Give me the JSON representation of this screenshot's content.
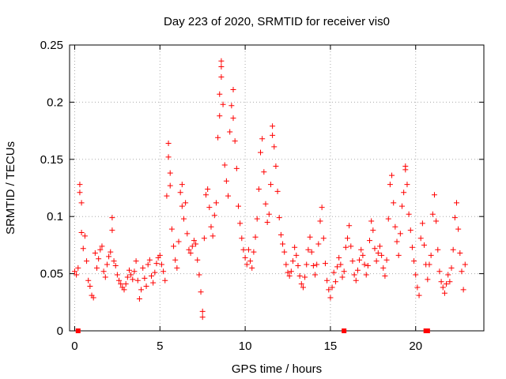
{
  "chart_data": {
    "type": "scatter",
    "title": "Day 223 of 2020, SRMTID for receiver vis0",
    "xlabel": "GPS time / hours",
    "ylabel": "SRMTID / TECUs",
    "xlim": [
      -0.3,
      24
    ],
    "ylim": [
      0,
      0.25
    ],
    "xticks": [
      0,
      5,
      10,
      15,
      20
    ],
    "xtick_labels": [
      "0",
      "5",
      "10",
      "15",
      "20"
    ],
    "yticks": [
      0,
      0.05,
      0.1,
      0.15,
      0.2,
      0.25
    ],
    "ytick_labels": [
      "0",
      "0.05",
      "0.1",
      "0.15",
      "0.2",
      "0.25"
    ],
    "grid": true,
    "marker": "+",
    "color": "#ff0000",
    "series": [
      {
        "name": "SRMTID",
        "points": [
          [
            0.0,
            0.052
          ],
          [
            0.1,
            0.049
          ],
          [
            0.2,
            0.055
          ],
          [
            0.3,
            0.128
          ],
          [
            0.3,
            0.121
          ],
          [
            0.4,
            0.112
          ],
          [
            0.4,
            0.086
          ],
          [
            0.5,
            0.072
          ],
          [
            0.6,
            0.083
          ],
          [
            0.7,
            0.061
          ],
          [
            0.8,
            0.044
          ],
          [
            0.9,
            0.039
          ],
          [
            1.0,
            0.031
          ],
          [
            1.1,
            0.029
          ],
          [
            1.2,
            0.068
          ],
          [
            1.3,
            0.055
          ],
          [
            1.4,
            0.063
          ],
          [
            1.5,
            0.071
          ],
          [
            1.6,
            0.074
          ],
          [
            1.7,
            0.052
          ],
          [
            1.8,
            0.047
          ],
          [
            1.9,
            0.058
          ],
          [
            2.0,
            0.065
          ],
          [
            2.1,
            0.069
          ],
          [
            2.2,
            0.088
          ],
          [
            2.2,
            0.099
          ],
          [
            2.3,
            0.061
          ],
          [
            2.4,
            0.057
          ],
          [
            2.5,
            0.049
          ],
          [
            2.6,
            0.044
          ],
          [
            2.7,
            0.041
          ],
          [
            2.8,
            0.038
          ],
          [
            2.9,
            0.036
          ],
          [
            3.0,
            0.041
          ],
          [
            3.1,
            0.047
          ],
          [
            3.2,
            0.053
          ],
          [
            3.3,
            0.049
          ],
          [
            3.4,
            0.045
          ],
          [
            3.5,
            0.052
          ],
          [
            3.6,
            0.061
          ],
          [
            3.7,
            0.044
          ],
          [
            3.8,
            0.028
          ],
          [
            3.9,
            0.036
          ],
          [
            4.0,
            0.055
          ],
          [
            4.1,
            0.046
          ],
          [
            4.2,
            0.039
          ],
          [
            4.3,
            0.058
          ],
          [
            4.4,
            0.062
          ],
          [
            4.5,
            0.048
          ],
          [
            4.6,
            0.042
          ],
          [
            4.7,
            0.051
          ],
          [
            4.8,
            0.059
          ],
          [
            4.9,
            0.064
          ],
          [
            5.0,
            0.066
          ],
          [
            5.1,
            0.058
          ],
          [
            5.2,
            0.052
          ],
          [
            5.3,
            0.044
          ],
          [
            5.4,
            0.118
          ],
          [
            5.5,
            0.164
          ],
          [
            5.5,
            0.152
          ],
          [
            5.6,
            0.138
          ],
          [
            5.6,
            0.127
          ],
          [
            5.7,
            0.089
          ],
          [
            5.8,
            0.074
          ],
          [
            5.9,
            0.062
          ],
          [
            6.0,
            0.055
          ],
          [
            6.1,
            0.078
          ],
          [
            6.2,
            0.121
          ],
          [
            6.3,
            0.128
          ],
          [
            6.3,
            0.109
          ],
          [
            6.4,
            0.098
          ],
          [
            6.5,
            0.112
          ],
          [
            6.6,
            0.085
          ],
          [
            6.7,
            0.071
          ],
          [
            6.8,
            0.068
          ],
          [
            6.9,
            0.074
          ],
          [
            7.0,
            0.079
          ],
          [
            7.1,
            0.076
          ],
          [
            7.2,
            0.062
          ],
          [
            7.3,
            0.049
          ],
          [
            7.4,
            0.034
          ],
          [
            7.5,
            0.012
          ],
          [
            7.5,
            0.017
          ],
          [
            7.6,
            0.081
          ],
          [
            7.7,
            0.119
          ],
          [
            7.8,
            0.124
          ],
          [
            7.9,
            0.108
          ],
          [
            8.0,
            0.091
          ],
          [
            8.1,
            0.083
          ],
          [
            8.2,
            0.101
          ],
          [
            8.3,
            0.112
          ],
          [
            8.4,
            0.169
          ],
          [
            8.5,
            0.188
          ],
          [
            8.5,
            0.207
          ],
          [
            8.6,
            0.236
          ],
          [
            8.6,
            0.231
          ],
          [
            8.6,
            0.222
          ],
          [
            8.7,
            0.198
          ],
          [
            8.8,
            0.145
          ],
          [
            8.9,
            0.131
          ],
          [
            9.0,
            0.118
          ],
          [
            9.1,
            0.174
          ],
          [
            9.2,
            0.197
          ],
          [
            9.3,
            0.211
          ],
          [
            9.3,
            0.186
          ],
          [
            9.4,
            0.166
          ],
          [
            9.5,
            0.142
          ],
          [
            9.6,
            0.109
          ],
          [
            9.7,
            0.094
          ],
          [
            9.8,
            0.081
          ],
          [
            9.9,
            0.071
          ],
          [
            10.0,
            0.064
          ],
          [
            10.1,
            0.058
          ],
          [
            10.2,
            0.071
          ],
          [
            10.3,
            0.061
          ],
          [
            10.4,
            0.055
          ],
          [
            10.5,
            0.069
          ],
          [
            10.6,
            0.082
          ],
          [
            10.7,
            0.098
          ],
          [
            10.8,
            0.124
          ],
          [
            10.9,
            0.156
          ],
          [
            11.0,
            0.168
          ],
          [
            11.1,
            0.139
          ],
          [
            11.2,
            0.111
          ],
          [
            11.3,
            0.095
          ],
          [
            11.4,
            0.102
          ],
          [
            11.5,
            0.128
          ],
          [
            11.6,
            0.171
          ],
          [
            11.6,
            0.179
          ],
          [
            11.7,
            0.161
          ],
          [
            11.8,
            0.144
          ],
          [
            11.9,
            0.122
          ],
          [
            12.0,
            0.099
          ],
          [
            12.1,
            0.084
          ],
          [
            12.2,
            0.076
          ],
          [
            12.3,
            0.069
          ],
          [
            12.4,
            0.058
          ],
          [
            12.5,
            0.051
          ],
          [
            12.6,
            0.048
          ],
          [
            12.7,
            0.052
          ],
          [
            12.8,
            0.061
          ],
          [
            12.9,
            0.073
          ],
          [
            13.0,
            0.066
          ],
          [
            13.1,
            0.057
          ],
          [
            13.2,
            0.048
          ],
          [
            13.3,
            0.041
          ],
          [
            13.4,
            0.038
          ],
          [
            13.5,
            0.047
          ],
          [
            13.6,
            0.058
          ],
          [
            13.7,
            0.071
          ],
          [
            13.8,
            0.082
          ],
          [
            13.9,
            0.069
          ],
          [
            14.0,
            0.057
          ],
          [
            14.1,
            0.049
          ],
          [
            14.2,
            0.058
          ],
          [
            14.3,
            0.076
          ],
          [
            14.4,
            0.096
          ],
          [
            14.5,
            0.108
          ],
          [
            14.6,
            0.081
          ],
          [
            14.7,
            0.059
          ],
          [
            14.8,
            0.044
          ],
          [
            14.9,
            0.036
          ],
          [
            15.0,
            0.029
          ],
          [
            15.1,
            0.038
          ],
          [
            15.2,
            0.051
          ],
          [
            15.3,
            0.043
          ],
          [
            15.4,
            0.056
          ],
          [
            15.5,
            0.064
          ],
          [
            15.6,
            0.058
          ],
          [
            15.7,
            0.047
          ],
          [
            15.8,
            0.052
          ],
          [
            15.9,
            0.073
          ],
          [
            16.0,
            0.081
          ],
          [
            16.1,
            0.092
          ],
          [
            16.2,
            0.074
          ],
          [
            16.3,
            0.061
          ],
          [
            16.4,
            0.049
          ],
          [
            16.5,
            0.044
          ],
          [
            16.6,
            0.053
          ],
          [
            16.7,
            0.062
          ],
          [
            16.8,
            0.071
          ],
          [
            16.9,
            0.066
          ],
          [
            17.0,
            0.058
          ],
          [
            17.1,
            0.049
          ],
          [
            17.2,
            0.057
          ],
          [
            17.3,
            0.079
          ],
          [
            17.4,
            0.096
          ],
          [
            17.5,
            0.088
          ],
          [
            17.6,
            0.072
          ],
          [
            17.7,
            0.061
          ],
          [
            17.8,
            0.068
          ],
          [
            17.9,
            0.074
          ],
          [
            18.0,
            0.066
          ],
          [
            18.1,
            0.055
          ],
          [
            18.2,
            0.048
          ],
          [
            18.3,
            0.062
          ],
          [
            18.4,
            0.098
          ],
          [
            18.5,
            0.128
          ],
          [
            18.6,
            0.136
          ],
          [
            18.7,
            0.112
          ],
          [
            18.8,
            0.091
          ],
          [
            18.9,
            0.078
          ],
          [
            19.0,
            0.066
          ],
          [
            19.1,
            0.085
          ],
          [
            19.2,
            0.109
          ],
          [
            19.3,
            0.121
          ],
          [
            19.4,
            0.141
          ],
          [
            19.4,
            0.144
          ],
          [
            19.5,
            0.128
          ],
          [
            19.6,
            0.102
          ],
          [
            19.7,
            0.088
          ],
          [
            19.8,
            0.073
          ],
          [
            19.9,
            0.061
          ],
          [
            20.0,
            0.049
          ],
          [
            20.1,
            0.038
          ],
          [
            20.2,
            0.031
          ],
          [
            20.3,
            0.081
          ],
          [
            20.4,
            0.094
          ],
          [
            20.5,
            0.075
          ],
          [
            20.6,
            0.058
          ],
          [
            20.7,
            0.045
          ],
          [
            20.8,
            0.058
          ],
          [
            20.9,
            0.066
          ],
          [
            21.0,
            0.102
          ],
          [
            21.1,
            0.119
          ],
          [
            21.2,
            0.096
          ],
          [
            21.3,
            0.071
          ],
          [
            21.4,
            0.052
          ],
          [
            21.5,
            0.043
          ],
          [
            21.6,
            0.038
          ],
          [
            21.7,
            0.033
          ],
          [
            21.8,
            0.041
          ],
          [
            21.9,
            0.049
          ],
          [
            22.0,
            0.043
          ],
          [
            22.1,
            0.055
          ],
          [
            22.2,
            0.071
          ],
          [
            22.3,
            0.099
          ],
          [
            22.4,
            0.112
          ],
          [
            22.5,
            0.089
          ],
          [
            22.6,
            0.068
          ],
          [
            22.7,
            0.052
          ],
          [
            22.8,
            0.036
          ],
          [
            22.9,
            0.058
          ]
        ]
      }
    ],
    "zero_markers": [
      0.2,
      15.8,
      20.6,
      20.7
    ]
  }
}
